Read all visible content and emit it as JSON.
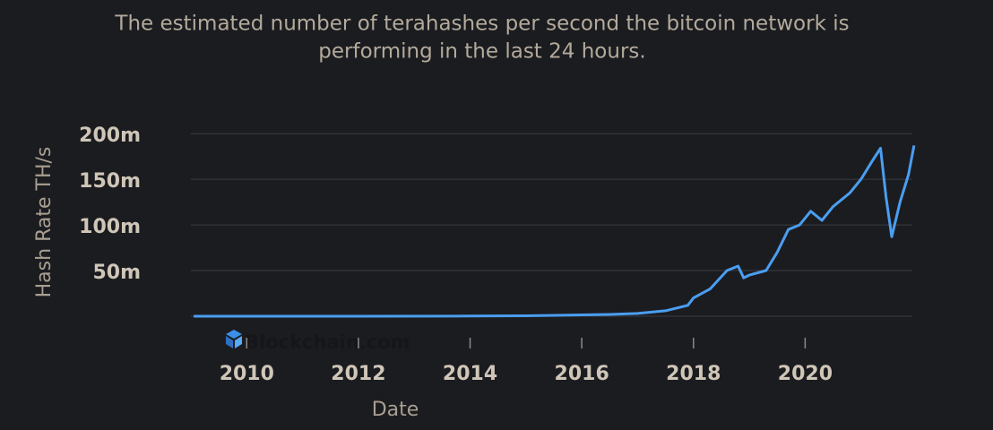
{
  "chart_data": {
    "type": "line",
    "title_lines": [
      "The estimated number of terahashes per second the bitcoin network is",
      "performing in the last 24 hours."
    ],
    "x_label": "Date",
    "y_label": "Hash Rate TH/s",
    "watermark": "Blockchain.com",
    "xlim": [
      2009,
      2022
    ],
    "xticks": [
      2010,
      2012,
      2014,
      2016,
      2018,
      2020
    ],
    "ylim": [
      0,
      210000000
    ],
    "yticks": [
      {
        "value": 50000000,
        "label": "50m"
      },
      {
        "value": 100000000,
        "label": "100m"
      },
      {
        "value": 150000000,
        "label": "150m"
      },
      {
        "value": 200000000,
        "label": "200m"
      }
    ],
    "grid": true,
    "series": [
      {
        "name": "Hash Rate",
        "color": "#4a9ef0",
        "x": [
          2009.05,
          2012,
          2014,
          2015,
          2016,
          2016.5,
          2017,
          2017.5,
          2017.9,
          2018.0,
          2018.3,
          2018.6,
          2018.8,
          2018.9,
          2019.0,
          2019.3,
          2019.5,
          2019.7,
          2019.9,
          2020.1,
          2020.3,
          2020.5,
          2020.8,
          2021.0,
          2021.2,
          2021.35,
          2021.45,
          2021.55,
          2021.7,
          2021.85,
          2021.95
        ],
        "values": [
          0,
          0,
          200000,
          500000,
          1500000,
          2000000,
          3000000,
          6000000,
          12000000,
          20000000,
          30000000,
          50000000,
          55000000,
          42000000,
          45000000,
          50000000,
          70000000,
          95000000,
          100000000,
          115000000,
          105000000,
          120000000,
          135000000,
          150000000,
          170000000,
          184000000,
          130000000,
          87000000,
          125000000,
          155000000,
          187000000
        ]
      }
    ]
  }
}
